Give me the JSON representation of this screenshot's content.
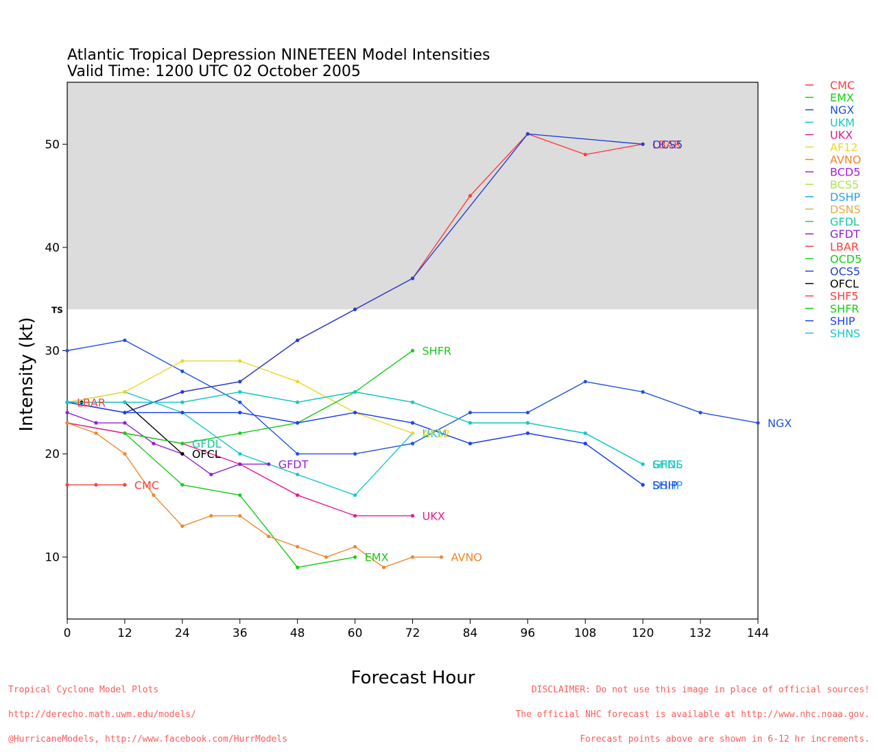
{
  "chart_data": {
    "type": "line",
    "title": "Atlantic Tropical Depression NINETEEN Model Intensities",
    "subtitle": "Valid Time: 1200 UTC 02 October 2005",
    "xlabel": "Forecast Hour",
    "ylabel": "Intensity (kt)",
    "xlim": [
      0,
      144
    ],
    "ylim": [
      4,
      56
    ],
    "xticks": [
      0,
      12,
      24,
      36,
      48,
      60,
      72,
      84,
      96,
      108,
      120,
      132,
      144
    ],
    "yticks": [
      10,
      20,
      30,
      40,
      50
    ],
    "shaded_threshold": {
      "label": "TS",
      "from": 34,
      "color": "#dcdcdc"
    },
    "legend_position": "right",
    "series": [
      {
        "name": "CMC",
        "color": "#ff3c3c",
        "points": [
          [
            0,
            17
          ],
          [
            6,
            17
          ],
          [
            12,
            17
          ]
        ]
      },
      {
        "name": "EMX",
        "color": "#18cc18",
        "points": [
          [
            0,
            23
          ],
          [
            12,
            22
          ],
          [
            24,
            17
          ],
          [
            36,
            16
          ],
          [
            48,
            9
          ],
          [
            60,
            10
          ]
        ]
      },
      {
        "name": "NGX",
        "color": "#2050e0",
        "points": [
          [
            0,
            30
          ],
          [
            12,
            31
          ],
          [
            24,
            28
          ],
          [
            36,
            25
          ],
          [
            48,
            20
          ],
          [
            60,
            20
          ],
          [
            72,
            21
          ],
          [
            84,
            24
          ],
          [
            96,
            24
          ],
          [
            108,
            27
          ],
          [
            120,
            26
          ],
          [
            132,
            24
          ],
          [
            144,
            23
          ]
        ]
      },
      {
        "name": "UKM",
        "color": "#18c8c8",
        "points": [
          [
            0,
            25
          ],
          [
            12,
            26
          ],
          [
            24,
            24
          ],
          [
            36,
            20
          ],
          [
            48,
            18
          ],
          [
            60,
            16
          ],
          [
            72,
            22
          ]
        ]
      },
      {
        "name": "UKX",
        "color": "#e81890",
        "points": [
          [
            0,
            23
          ],
          [
            12,
            22
          ],
          [
            24,
            21
          ],
          [
            36,
            19
          ],
          [
            48,
            16
          ],
          [
            60,
            14
          ],
          [
            72,
            14
          ]
        ]
      },
      {
        "name": "AF12",
        "color": "#e8d82c",
        "points": [
          [
            0,
            25
          ],
          [
            12,
            26
          ],
          [
            24,
            29
          ],
          [
            36,
            29
          ],
          [
            48,
            27
          ],
          [
            60,
            24
          ],
          [
            72,
            22
          ]
        ]
      },
      {
        "name": "AVNO",
        "color": "#f0862c",
        "points": [
          [
            0,
            23
          ],
          [
            6,
            22
          ],
          [
            12,
            20
          ],
          [
            18,
            16
          ],
          [
            24,
            13
          ],
          [
            30,
            14
          ],
          [
            36,
            14
          ],
          [
            42,
            12
          ],
          [
            48,
            11
          ],
          [
            54,
            10
          ],
          [
            60,
            11
          ],
          [
            66,
            9
          ],
          [
            72,
            10
          ],
          [
            78,
            10
          ]
        ]
      },
      {
        "name": "BCD5",
        "color": "#a020e0",
        "points": []
      },
      {
        "name": "BCS5",
        "color": "#a8e848",
        "points": []
      },
      {
        "name": "DSHP",
        "color": "#28a0f0",
        "points": [
          [
            0,
            25
          ],
          [
            12,
            24
          ],
          [
            24,
            24
          ],
          [
            36,
            24
          ],
          [
            48,
            23
          ],
          [
            60,
            24
          ],
          [
            72,
            23
          ],
          [
            84,
            21
          ],
          [
            96,
            22
          ],
          [
            108,
            21
          ],
          [
            120,
            17
          ]
        ]
      },
      {
        "name": "DSNS",
        "color": "#e0b040",
        "points": []
      },
      {
        "name": "GFDL",
        "color": "#18c8a0",
        "points": [
          [
            0,
            25
          ],
          [
            12,
            25
          ],
          [
            24,
            25
          ],
          [
            36,
            26
          ],
          [
            48,
            25
          ],
          [
            60,
            26
          ],
          [
            72,
            25
          ],
          [
            84,
            23
          ],
          [
            96,
            23
          ],
          [
            108,
            22
          ],
          [
            120,
            19
          ]
        ]
      },
      {
        "name": "GFDT",
        "color": "#9020d8",
        "points": [
          [
            0,
            24
          ],
          [
            6,
            23
          ],
          [
            12,
            23
          ],
          [
            18,
            21
          ],
          [
            24,
            20
          ],
          [
            30,
            18
          ],
          [
            36,
            19
          ],
          [
            42,
            19
          ]
        ]
      },
      {
        "name": "LBAR",
        "color": "#ff3c3c",
        "points": [
          [
            0,
            25
          ],
          [
            12,
            24
          ],
          [
            24,
            26
          ],
          [
            36,
            27
          ],
          [
            48,
            31
          ],
          [
            60,
            34
          ],
          [
            72,
            37
          ],
          [
            84,
            45
          ],
          [
            96,
            51
          ],
          [
            108,
            49
          ],
          [
            120,
            50
          ]
        ]
      },
      {
        "name": "OCD5",
        "color": "#18cc18",
        "points": []
      },
      {
        "name": "OCS5",
        "color": "#2040d8",
        "points": [
          [
            0,
            25
          ],
          [
            12,
            24
          ],
          [
            24,
            26
          ],
          [
            36,
            27
          ],
          [
            48,
            31
          ],
          [
            60,
            34
          ],
          [
            72,
            37
          ],
          [
            96,
            51
          ],
          [
            120,
            50
          ]
        ]
      },
      {
        "name": "OFCL",
        "color": "#000000",
        "points": [
          [
            0,
            25
          ],
          [
            3,
            25
          ],
          [
            12,
            25
          ],
          [
            24,
            20
          ]
        ]
      },
      {
        "name": "SHF5",
        "color": "#ff3c3c",
        "points": []
      },
      {
        "name": "SHFR",
        "color": "#18cc18",
        "points": [
          [
            12,
            22
          ],
          [
            24,
            21
          ],
          [
            36,
            22
          ],
          [
            48,
            23
          ],
          [
            60,
            26
          ],
          [
            72,
            30
          ]
        ]
      },
      {
        "name": "SHIP",
        "color": "#2040f0",
        "points": [
          [
            0,
            25
          ],
          [
            12,
            24
          ],
          [
            24,
            24
          ],
          [
            36,
            24
          ],
          [
            48,
            23
          ],
          [
            60,
            24
          ],
          [
            72,
            23
          ],
          [
            84,
            21
          ],
          [
            96,
            22
          ],
          [
            108,
            21
          ],
          [
            120,
            17
          ]
        ]
      },
      {
        "name": "SHNS",
        "color": "#18c8c8",
        "points": [
          [
            0,
            25
          ],
          [
            12,
            25
          ],
          [
            24,
            25
          ],
          [
            36,
            26
          ],
          [
            48,
            25
          ],
          [
            60,
            26
          ],
          [
            72,
            25
          ],
          [
            84,
            23
          ],
          [
            96,
            23
          ],
          [
            108,
            22
          ],
          [
            120,
            19
          ]
        ]
      }
    ],
    "end_labels": [
      {
        "text": "CMC",
        "series": "CMC",
        "x": 12,
        "y": 17
      },
      {
        "text": "EMX",
        "series": "EMX",
        "x": 60,
        "y": 10
      },
      {
        "text": "NGX",
        "series": "NGX",
        "x": 144,
        "y": 23
      },
      {
        "text": "UKM",
        "series": "UKM",
        "x": 72,
        "y": 22
      },
      {
        "text": "UKX",
        "series": "UKX",
        "x": 72,
        "y": 14
      },
      {
        "text": "AF12",
        "series": "AF12",
        "x": 72,
        "y": 22
      },
      {
        "text": "AVNO",
        "series": "AVNO",
        "x": 78,
        "y": 10
      },
      {
        "text": "DSHP",
        "series": "DSHP",
        "x": 120,
        "y": 17
      },
      {
        "text": "GFDL",
        "series": "GFDL",
        "x": 120,
        "y": 19
      },
      {
        "text": "GFDL",
        "series": "GFDL",
        "x": 24,
        "y": 21
      },
      {
        "text": "GFDT",
        "series": "GFDT",
        "x": 42,
        "y": 19
      },
      {
        "text": "LBAR",
        "series": "LBAR",
        "x": 120,
        "y": 50
      },
      {
        "text": "LBAR",
        "series": "LBAR",
        "x": 0,
        "y": 25
      },
      {
        "text": "OCS5",
        "series": "OCS5",
        "x": 120,
        "y": 50
      },
      {
        "text": "OFCL",
        "series": "OFCL",
        "x": 24,
        "y": 20
      },
      {
        "text": "SHFR",
        "series": "SHFR",
        "x": 72,
        "y": 30
      },
      {
        "text": "SHIP",
        "series": "SHIP",
        "x": 120,
        "y": 17
      },
      {
        "text": "SHNS",
        "series": "SHNS",
        "x": 120,
        "y": 19
      }
    ]
  },
  "footer": {
    "left_lines": [
      "Tropical Cyclone Model Plots",
      "http://derecho.math.uwm.edu/models/",
      "@HurricaneModels, http://www.facebook.com/HurrModels"
    ],
    "right_lines": [
      "DISCLAIMER: Do not use this image in place of official sources!",
      "The official NHC forecast is available at http://www.nhc.noaa.gov.",
      "Forecast points above are shown in 6-12 hr increments."
    ]
  }
}
